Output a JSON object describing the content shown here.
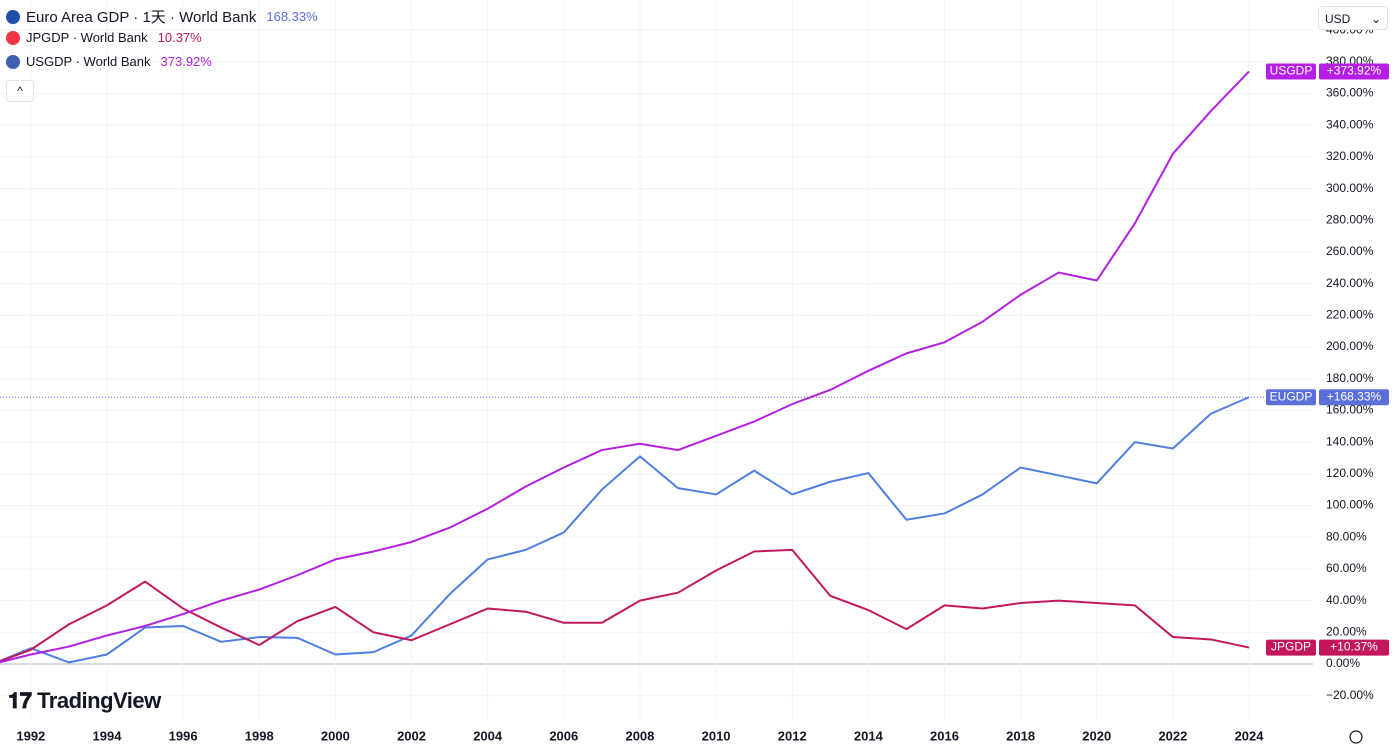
{
  "chart_data": {
    "type": "line",
    "x": [
      1991,
      1992,
      1993,
      1994,
      1995,
      1996,
      1997,
      1998,
      1999,
      2000,
      2001,
      2002,
      2003,
      2004,
      2005,
      2006,
      2007,
      2008,
      2009,
      2010,
      2011,
      2012,
      2013,
      2014,
      2015,
      2016,
      2017,
      2018,
      2019,
      2020,
      2021,
      2022,
      2023,
      2024
    ],
    "xlim": [
      1991.19,
      2025.68
    ],
    "xticks": [
      1992,
      1994,
      1996,
      1998,
      2000,
      2002,
      2004,
      2006,
      2008,
      2010,
      2012,
      2014,
      2016,
      2018,
      2020,
      2022,
      2024
    ],
    "ylim": [
      -36.6,
      419
    ],
    "yticks": [
      {
        "value": -20,
        "label": "−20.00%"
      },
      {
        "value": 0,
        "label": "0.00%"
      },
      {
        "value": 20,
        "label": "20.00%"
      },
      {
        "value": 40,
        "label": "40.00%"
      },
      {
        "value": 60,
        "label": "60.00%"
      },
      {
        "value": 80,
        "label": "80.00%"
      },
      {
        "value": 100,
        "label": "100.00%"
      },
      {
        "value": 120,
        "label": "120.00%"
      },
      {
        "value": 140,
        "label": "140.00%"
      },
      {
        "value": 160,
        "label": "160.00%"
      },
      {
        "value": 180,
        "label": "180.00%"
      },
      {
        "value": 200,
        "label": "200.00%"
      },
      {
        "value": 220,
        "label": "220.00%"
      },
      {
        "value": 240,
        "label": "240.00%"
      },
      {
        "value": 260,
        "label": "260.00%"
      },
      {
        "value": 280,
        "label": "280.00%"
      },
      {
        "value": 300,
        "label": "300.00%"
      },
      {
        "value": 320,
        "label": "320.00%"
      },
      {
        "value": 340,
        "label": "340.00%"
      },
      {
        "value": 360,
        "label": "360.00%"
      },
      {
        "value": 380,
        "label": "380.00%"
      },
      {
        "value": 400,
        "label": "400.00%"
      }
    ],
    "grid": true,
    "currency": "USD",
    "brand": "TradingView",
    "series": [
      {
        "name": "Euro Area GDP · 1天 · World Bank",
        "short_name": "EUGDP",
        "legend_value": "168.33%",
        "end_label": "+168.33%",
        "color": "#4f7fe0",
        "label_color": "#5b6fd8",
        "flag_color": "#1f4fa8",
        "values": [
          0,
          10,
          1,
          6,
          23,
          24,
          14,
          17,
          16.5,
          6,
          7.5,
          18,
          44,
          66,
          72,
          83,
          110,
          131,
          111,
          107,
          122,
          107,
          115,
          120.5,
          91,
          95,
          107,
          124,
          119,
          114,
          140,
          136,
          158,
          168.33
        ]
      },
      {
        "name": "JPGDP · World Bank",
        "short_name": "JPGDP",
        "legend_value": "10.37%",
        "end_label": "+10.37%",
        "color": "#c2185b",
        "label_color": "#c2185b",
        "flag_color": "#f23645",
        "values": [
          0,
          9,
          25,
          37,
          52,
          35,
          23,
          12,
          27,
          36,
          20,
          15,
          25,
          35,
          33,
          26,
          26,
          40,
          45,
          59,
          71,
          72,
          43,
          34,
          22,
          37,
          35,
          38.5,
          40,
          38.5,
          37,
          17,
          15.5,
          10.37
        ]
      },
      {
        "name": "USGDP · World Bank",
        "short_name": "USGDP",
        "legend_value": "373.92%",
        "end_label": "+373.92%",
        "color": "#b41fe3",
        "label_color": "#b41fe3",
        "flag_color": "#3c5fb0",
        "values": [
          0,
          6,
          11,
          18,
          24,
          31.5,
          40,
          47,
          56,
          66,
          71,
          77,
          86,
          98,
          112,
          124,
          135,
          139,
          135,
          144,
          153,
          164,
          173,
          185,
          196,
          203,
          216,
          233,
          247,
          242,
          278,
          322,
          349,
          373.92
        ]
      }
    ]
  }
}
